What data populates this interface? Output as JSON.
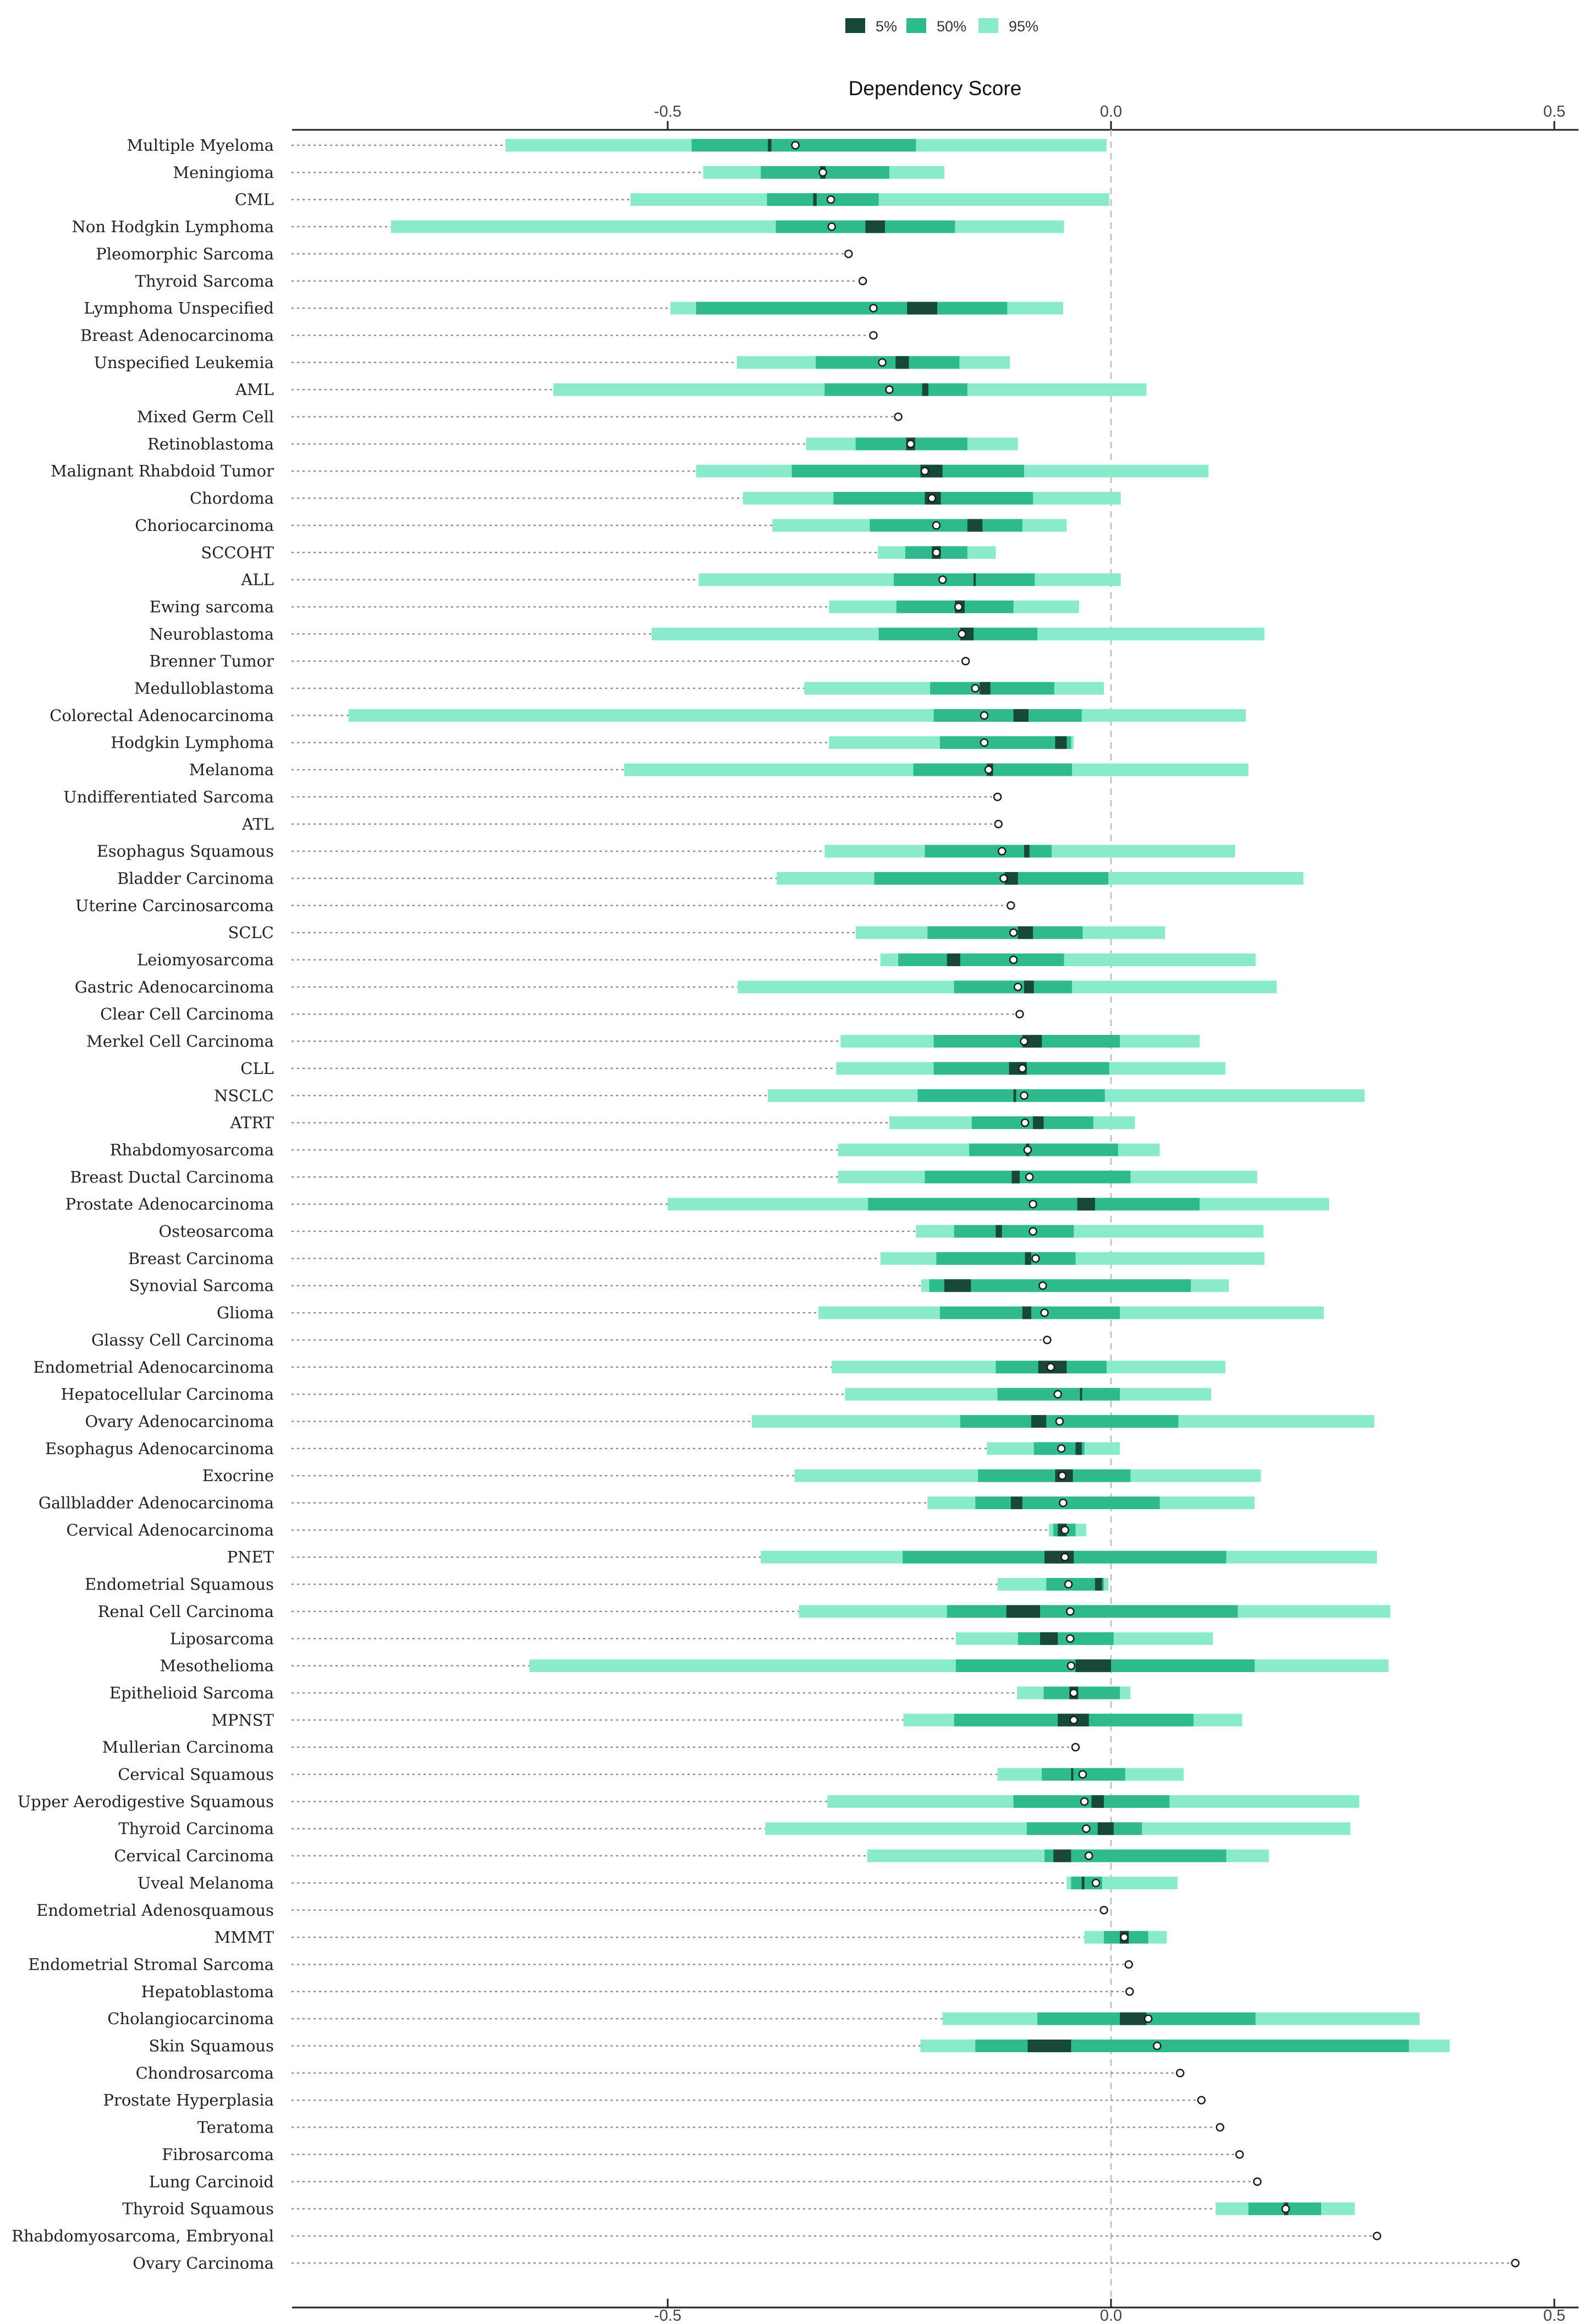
{
  "chart_data": {
    "type": "bar",
    "xlabel": "Dependency Score",
    "xlim": [
      -0.92,
      0.52
    ],
    "xticks": [
      -0.5,
      0.0,
      0.5
    ],
    "xtick_labels": [
      "-0.5",
      "0.0",
      "0.5"
    ],
    "grid": false,
    "zero_line": "dashed",
    "legend_position": "top-center",
    "legend": [
      {
        "label": "5%",
        "color": "#17483a"
      },
      {
        "label": "50%",
        "color": "#2fba8e"
      },
      {
        "label": "95%",
        "color": "#8aebcc"
      }
    ],
    "categories": [
      {
        "name": "Multiple Myeloma",
        "l95": -0.683,
        "l50": -0.473,
        "l5": -0.387,
        "h5": -0.383,
        "h50": -0.22,
        "h95": -0.005,
        "median": -0.356
      },
      {
        "name": "Meningioma",
        "l95": -0.46,
        "l50": -0.395,
        "l5": -0.328,
        "h5": -0.322,
        "h50": -0.25,
        "h95": -0.188,
        "median": -0.325
      },
      {
        "name": "CML",
        "l95": -0.542,
        "l50": -0.388,
        "l5": -0.336,
        "h5": -0.332,
        "h50": -0.262,
        "h95": -0.002,
        "median": -0.316
      },
      {
        "name": "Non Hodgkin Lymphoma",
        "l95": -0.812,
        "l50": -0.378,
        "l5": -0.277,
        "h5": -0.255,
        "h50": -0.176,
        "h95": -0.053,
        "median": -0.315
      },
      {
        "name": "Pleomorphic Sarcoma",
        "median": -0.296
      },
      {
        "name": "Thyroid Sarcoma",
        "median": -0.28
      },
      {
        "name": "Lymphoma Unspecified",
        "l95": -0.497,
        "l50": -0.468,
        "l5": -0.23,
        "h5": -0.196,
        "h50": -0.117,
        "h95": -0.054,
        "median": -0.268
      },
      {
        "name": "Breast Adenocarcinoma",
        "median": -0.268
      },
      {
        "name": "Unspecified Leukemia",
        "l95": -0.422,
        "l50": -0.333,
        "l5": -0.243,
        "h5": -0.228,
        "h50": -0.171,
        "h95": -0.114,
        "median": -0.258
      },
      {
        "name": "AML",
        "l95": -0.629,
        "l50": -0.323,
        "l5": -0.213,
        "h5": -0.206,
        "h50": -0.162,
        "h95": 0.04,
        "median": -0.25
      },
      {
        "name": "Mixed Germ Cell",
        "median": -0.24
      },
      {
        "name": "Retinoblastoma",
        "l95": -0.344,
        "l50": -0.288,
        "l5": -0.231,
        "h5": -0.221,
        "h50": -0.162,
        "h95": -0.105,
        "median": -0.226
      },
      {
        "name": "Malignant Rhabdoid Tumor",
        "l95": -0.468,
        "l50": -0.36,
        "l5": -0.215,
        "h5": -0.19,
        "h50": -0.098,
        "h95": 0.11,
        "median": -0.21
      },
      {
        "name": "Chordoma",
        "l95": -0.415,
        "l50": -0.313,
        "l5": -0.21,
        "h5": -0.192,
        "h50": -0.088,
        "h95": 0.011,
        "median": -0.202
      },
      {
        "name": "Choriocarcinoma",
        "l95": -0.382,
        "l50": -0.272,
        "l5": -0.162,
        "h5": -0.145,
        "h50": -0.1,
        "h95": -0.05,
        "median": -0.197
      },
      {
        "name": "SCCOHT",
        "l95": -0.263,
        "l50": -0.232,
        "l5": -0.202,
        "h5": -0.192,
        "h50": -0.162,
        "h95": -0.13,
        "median": -0.197
      },
      {
        "name": "ALL",
        "l95": -0.465,
        "l50": -0.245,
        "l5": -0.155,
        "h5": -0.153,
        "h50": -0.086,
        "h95": 0.011,
        "median": -0.19
      },
      {
        "name": "Ewing sarcoma",
        "l95": -0.318,
        "l50": -0.242,
        "l5": -0.176,
        "h5": -0.165,
        "h50": -0.11,
        "h95": -0.036,
        "median": -0.172
      },
      {
        "name": "Neuroblastoma",
        "l95": -0.518,
        "l50": -0.262,
        "l5": -0.17,
        "h5": -0.155,
        "h50": -0.083,
        "h95": 0.173,
        "median": -0.168
      },
      {
        "name": "Brenner Tumor",
        "median": -0.164
      },
      {
        "name": "Medulloblastoma",
        "l95": -0.346,
        "l50": -0.204,
        "l5": -0.148,
        "h5": -0.136,
        "h50": -0.064,
        "h95": -0.008,
        "median": -0.153
      },
      {
        "name": "Colorectal Adenocarcinoma",
        "l95": -0.86,
        "l50": -0.2,
        "l5": -0.11,
        "h5": -0.093,
        "h50": -0.033,
        "h95": 0.152,
        "median": -0.143
      },
      {
        "name": "Hodgkin Lymphoma",
        "l95": -0.318,
        "l50": -0.193,
        "l5": -0.063,
        "h5": -0.05,
        "h50": -0.045,
        "h95": -0.042,
        "median": -0.143
      },
      {
        "name": "Melanoma",
        "l95": -0.549,
        "l50": -0.223,
        "l5": -0.14,
        "h5": -0.133,
        "h50": -0.044,
        "h95": 0.155,
        "median": -0.138
      },
      {
        "name": "Undifferentiated Sarcoma",
        "median": -0.128
      },
      {
        "name": "ATL",
        "median": -0.127
      },
      {
        "name": "Esophagus Squamous",
        "l95": -0.323,
        "l50": -0.21,
        "l5": -0.098,
        "h5": -0.092,
        "h50": -0.067,
        "h95": 0.14,
        "median": -0.123
      },
      {
        "name": "Bladder Carcinoma",
        "l95": -0.377,
        "l50": -0.267,
        "l5": -0.12,
        "h5": -0.105,
        "h50": -0.003,
        "h95": 0.217,
        "median": -0.121
      },
      {
        "name": "Uterine Carcinosarcoma",
        "median": -0.113
      },
      {
        "name": "SCLC",
        "l95": -0.288,
        "l50": -0.207,
        "l5": -0.105,
        "h5": -0.088,
        "h50": -0.032,
        "h95": 0.061,
        "median": -0.11
      },
      {
        "name": "Leiomyosarcoma",
        "l95": -0.26,
        "l50": -0.24,
        "l5": -0.185,
        "h5": -0.17,
        "h50": -0.053,
        "h95": 0.163,
        "median": -0.11
      },
      {
        "name": "Gastric Adenocarcinoma",
        "l95": -0.421,
        "l50": -0.177,
        "l5": -0.098,
        "h5": -0.087,
        "h50": -0.044,
        "h95": 0.187,
        "median": -0.105
      },
      {
        "name": "Clear Cell Carcinoma",
        "median": -0.103
      },
      {
        "name": "Merkel Cell Carcinoma",
        "l95": -0.305,
        "l50": -0.2,
        "l5": -0.1,
        "h5": -0.078,
        "h50": 0.01,
        "h95": 0.1,
        "median": -0.098
      },
      {
        "name": "CLL",
        "l95": -0.31,
        "l50": -0.2,
        "l5": -0.115,
        "h5": -0.095,
        "h50": -0.002,
        "h95": 0.129,
        "median": -0.1
      },
      {
        "name": "NSCLC",
        "l95": -0.387,
        "l50": -0.218,
        "l5": -0.11,
        "h5": -0.107,
        "h50": -0.007,
        "h95": 0.286,
        "median": -0.098
      },
      {
        "name": "ATRT",
        "l95": -0.25,
        "l50": -0.157,
        "l5": -0.088,
        "h5": -0.076,
        "h50": -0.02,
        "h95": 0.027,
        "median": -0.097
      },
      {
        "name": "Rhabdomyosarcoma",
        "l95": -0.308,
        "l50": -0.16,
        "l5": -0.096,
        "h5": -0.092,
        "h50": 0.008,
        "h95": 0.055,
        "median": -0.094
      },
      {
        "name": "Breast Ductal Carcinoma",
        "l95": -0.308,
        "l50": -0.21,
        "l5": -0.112,
        "h5": -0.103,
        "h50": 0.022,
        "h95": 0.165,
        "median": -0.092
      },
      {
        "name": "Prostate Adenocarcinoma",
        "l95": -0.5,
        "l50": -0.274,
        "l5": -0.038,
        "h5": -0.018,
        "h50": 0.1,
        "h95": 0.246,
        "median": -0.088
      },
      {
        "name": "Osteosarcoma",
        "l95": -0.22,
        "l50": -0.177,
        "l5": -0.13,
        "h5": -0.123,
        "h50": -0.042,
        "h95": 0.172,
        "median": -0.088
      },
      {
        "name": "Breast Carcinoma",
        "l95": -0.26,
        "l50": -0.197,
        "l5": -0.097,
        "h5": -0.09,
        "h50": -0.04,
        "h95": 0.173,
        "median": -0.085
      },
      {
        "name": "Synovial Sarcoma",
        "l95": -0.214,
        "l50": -0.205,
        "l5": -0.188,
        "h5": -0.158,
        "h50": 0.09,
        "h95": 0.133,
        "median": -0.077
      },
      {
        "name": "Glioma",
        "l95": -0.33,
        "l50": -0.193,
        "l5": -0.1,
        "h5": -0.09,
        "h50": 0.01,
        "h95": 0.24,
        "median": -0.075
      },
      {
        "name": "Glassy Cell Carcinoma",
        "median": -0.072
      },
      {
        "name": "Endometrial Adenocarcinoma",
        "l95": -0.315,
        "l50": -0.13,
        "l5": -0.082,
        "h5": -0.05,
        "h50": -0.005,
        "h95": 0.129,
        "median": -0.068
      },
      {
        "name": "Hepatocellular Carcinoma",
        "l95": -0.3,
        "l50": -0.128,
        "l5": -0.035,
        "h5": -0.033,
        "h50": 0.01,
        "h95": 0.113,
        "median": -0.06
      },
      {
        "name": "Ovary Adenocarcinoma",
        "l95": -0.405,
        "l50": -0.17,
        "l5": -0.09,
        "h5": -0.073,
        "h50": 0.076,
        "h95": 0.297,
        "median": -0.058
      },
      {
        "name": "Esophagus Adenocarcinoma",
        "l95": -0.14,
        "l50": -0.087,
        "l5": -0.04,
        "h5": -0.033,
        "h50": -0.03,
        "h95": 0.01,
        "median": -0.056
      },
      {
        "name": "Exocrine",
        "l95": -0.357,
        "l50": -0.15,
        "l5": -0.063,
        "h5": -0.043,
        "h50": 0.022,
        "h95": 0.169,
        "median": -0.055
      },
      {
        "name": "Gallbladder Adenocarcinoma",
        "l95": -0.207,
        "l50": -0.153,
        "l5": -0.113,
        "h5": -0.1,
        "h50": 0.055,
        "h95": 0.162,
        "median": -0.054
      },
      {
        "name": "Cervical Adenocarcinoma",
        "l95": -0.07,
        "l50": -0.065,
        "l5": -0.06,
        "h5": -0.05,
        "h50": -0.04,
        "h95": -0.028,
        "median": -0.052
      },
      {
        "name": "PNET",
        "l95": -0.395,
        "l50": -0.235,
        "l5": -0.075,
        "h5": -0.042,
        "h50": 0.13,
        "h95": 0.3,
        "median": -0.052
      },
      {
        "name": "Endometrial Squamous",
        "l95": -0.128,
        "l50": -0.073,
        "l5": -0.018,
        "h5": -0.01,
        "h50": -0.008,
        "h95": -0.003,
        "median": -0.048
      },
      {
        "name": "Renal Cell Carcinoma",
        "l95": -0.352,
        "l50": -0.185,
        "l5": -0.118,
        "h5": -0.08,
        "h50": 0.143,
        "h95": 0.315,
        "median": -0.046
      },
      {
        "name": "Liposarcoma",
        "l95": -0.175,
        "l50": -0.105,
        "l5": -0.08,
        "h5": -0.06,
        "h50": 0.003,
        "h95": 0.115,
        "median": -0.046
      },
      {
        "name": "Mesothelioma",
        "l95": -0.656,
        "l50": -0.175,
        "l5": -0.04,
        "h5": 0.0,
        "h50": 0.162,
        "h95": 0.313,
        "median": -0.045
      },
      {
        "name": "Epithelioid Sarcoma",
        "l95": -0.106,
        "l50": -0.076,
        "l5": -0.047,
        "h5": -0.037,
        "h50": 0.01,
        "h95": 0.022,
        "median": -0.042
      },
      {
        "name": "MPNST",
        "l95": -0.234,
        "l50": -0.177,
        "l5": -0.06,
        "h5": -0.025,
        "h50": 0.093,
        "h95": 0.148,
        "median": -0.042
      },
      {
        "name": "Mullerian Carcinoma",
        "median": -0.04
      },
      {
        "name": "Cervical Squamous",
        "l95": -0.128,
        "l50": -0.078,
        "l5": -0.045,
        "h5": -0.043,
        "h50": 0.016,
        "h95": 0.082,
        "median": -0.032
      },
      {
        "name": "Upper Aerodigestive Squamous",
        "l95": -0.32,
        "l50": -0.11,
        "l5": -0.022,
        "h5": -0.008,
        "h50": 0.066,
        "h95": 0.28,
        "median": -0.03
      },
      {
        "name": "Thyroid Carcinoma",
        "l95": -0.39,
        "l50": -0.095,
        "l5": -0.015,
        "h5": 0.003,
        "h50": 0.035,
        "h95": 0.27,
        "median": -0.028
      },
      {
        "name": "Cervical Carcinoma",
        "l95": -0.275,
        "l50": -0.075,
        "l5": -0.065,
        "h5": -0.045,
        "h50": 0.13,
        "h95": 0.178,
        "median": -0.025
      },
      {
        "name": "Uveal Melanoma",
        "l95": -0.05,
        "l50": -0.045,
        "l5": -0.033,
        "h5": -0.03,
        "h50": -0.01,
        "h95": 0.075,
        "median": -0.017
      },
      {
        "name": "Endometrial Adenosquamous",
        "median": -0.008
      },
      {
        "name": "MMMT",
        "l95": -0.03,
        "l50": -0.008,
        "l5": 0.01,
        "h5": 0.02,
        "h50": 0.042,
        "h95": 0.063,
        "median": 0.015
      },
      {
        "name": "Endometrial Stromal Sarcoma",
        "median": 0.02
      },
      {
        "name": "Hepatoblastoma",
        "median": 0.021
      },
      {
        "name": "Cholangiocarcinoma",
        "l95": -0.19,
        "l50": -0.083,
        "l5": 0.01,
        "h5": 0.04,
        "h50": 0.163,
        "h95": 0.348,
        "median": 0.042
      },
      {
        "name": "Skin Squamous",
        "l95": -0.215,
        "l50": -0.153,
        "l5": -0.094,
        "h5": -0.045,
        "h50": 0.336,
        "h95": 0.382,
        "median": 0.052
      },
      {
        "name": "Chondrosarcoma",
        "median": 0.078
      },
      {
        "name": "Prostate Hyperplasia",
        "median": 0.102
      },
      {
        "name": "Teratoma",
        "median": 0.123
      },
      {
        "name": "Fibrosarcoma",
        "median": 0.145
      },
      {
        "name": "Lung Carcinoid",
        "median": 0.165
      },
      {
        "name": "Thyroid Squamous",
        "l95": 0.118,
        "l50": 0.155,
        "l5": 0.195,
        "h5": 0.2,
        "h50": 0.237,
        "h95": 0.275,
        "median": 0.197
      },
      {
        "name": "Rhabdomyosarcoma, Embryonal",
        "median": 0.3
      },
      {
        "name": "Ovary Carcinoma",
        "median": 0.456
      }
    ]
  }
}
